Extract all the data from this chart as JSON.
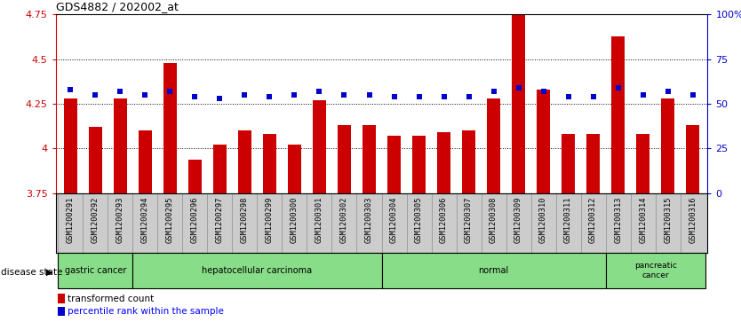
{
  "title": "GDS4882 / 202002_at",
  "samples": [
    "GSM1200291",
    "GSM1200292",
    "GSM1200293",
    "GSM1200294",
    "GSM1200295",
    "GSM1200296",
    "GSM1200297",
    "GSM1200298",
    "GSM1200299",
    "GSM1200300",
    "GSM1200301",
    "GSM1200302",
    "GSM1200303",
    "GSM1200304",
    "GSM1200305",
    "GSM1200306",
    "GSM1200307",
    "GSM1200308",
    "GSM1200309",
    "GSM1200310",
    "GSM1200311",
    "GSM1200312",
    "GSM1200313",
    "GSM1200314",
    "GSM1200315",
    "GSM1200316"
  ],
  "bar_values": [
    4.28,
    4.12,
    4.28,
    4.1,
    4.48,
    3.94,
    4.02,
    4.1,
    4.08,
    4.02,
    4.27,
    4.13,
    4.13,
    4.07,
    4.07,
    4.09,
    4.1,
    4.28,
    4.75,
    4.33,
    4.08,
    4.08,
    4.63,
    4.08,
    4.28,
    4.13
  ],
  "percentile_values": [
    58,
    55,
    57,
    55,
    57,
    54,
    53,
    55,
    54,
    55,
    57,
    55,
    55,
    54,
    54,
    54,
    54,
    57,
    59,
    57,
    54,
    54,
    59,
    55,
    57,
    55
  ],
  "ylim_left": [
    3.75,
    4.75
  ],
  "ylim_right": [
    0,
    100
  ],
  "yticks_left": [
    3.75,
    4.0,
    4.25,
    4.5,
    4.75
  ],
  "ytick_labels_left": [
    "3.75",
    "4",
    "4.25",
    "4.5",
    "4.75"
  ],
  "yticks_right": [
    0,
    25,
    50,
    75,
    100
  ],
  "ytick_labels_right": [
    "0",
    "25",
    "50",
    "75",
    "100%"
  ],
  "bar_color": "#cc0000",
  "dot_color": "#0000cc",
  "grid_dotted_at": [
    4.0,
    4.25,
    4.5
  ],
  "bg_color": "#ffffff",
  "xtick_bg_color": "#cccccc",
  "disease_groups": [
    {
      "label": "gastric cancer",
      "start": 0,
      "end": 2
    },
    {
      "label": "hepatocellular carcinoma",
      "start": 3,
      "end": 12
    },
    {
      "label": "normal",
      "start": 13,
      "end": 21
    },
    {
      "label": "pancreatic\ncancer",
      "start": 22,
      "end": 25
    }
  ],
  "group_color": "#88dd88",
  "group_edge_color": "#000000",
  "legend_bar_label": "transformed count",
  "legend_dot_label": "percentile rank within the sample",
  "disease_state_label": "disease state"
}
